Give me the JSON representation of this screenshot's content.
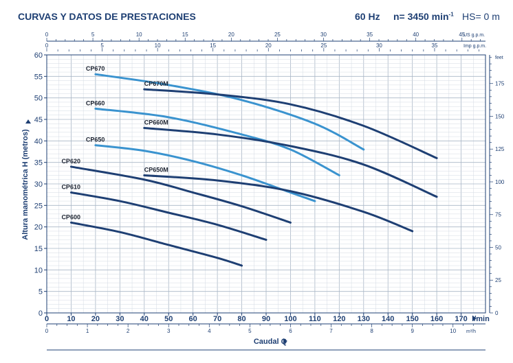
{
  "header": {
    "title": "CURVAS Y DATOS DE PRESTACIONES",
    "frequency": "60 Hz",
    "speed": "n= 3450 min",
    "speed_exp": "-1",
    "suction_head": "HS= 0 m"
  },
  "chart_data": {
    "type": "line",
    "xlabel": "Caudal Q",
    "ylabel": "Altura manométrica H (metros)",
    "xlim": [
      0,
      180
    ],
    "ylim": [
      0,
      60
    ],
    "x_unit": "l/min",
    "grid": true,
    "axes": {
      "lmin": {
        "ticks": [
          0,
          10,
          20,
          30,
          40,
          50,
          60,
          70,
          80,
          90,
          100,
          110,
          120,
          130,
          140,
          150,
          160,
          170
        ],
        "unit": "l/min"
      },
      "m3h": {
        "ticks": [
          0,
          1,
          2,
          3,
          4,
          5,
          6,
          7,
          8,
          9,
          10
        ],
        "unit": "m³/h"
      },
      "usgpm": {
        "ticks": [
          0,
          5,
          10,
          15,
          20,
          25,
          30,
          35,
          40,
          45
        ],
        "unit": "US g.p.m."
      },
      "impgpm": {
        "ticks": [
          0,
          5,
          10,
          15,
          20,
          25,
          30,
          35
        ],
        "unit": "Imp g.p.m."
      },
      "meters": {
        "ticks": [
          0,
          5,
          10,
          15,
          20,
          25,
          30,
          35,
          40,
          45,
          50,
          55,
          60
        ]
      },
      "feet": {
        "ticks": [
          0,
          25,
          50,
          75,
          100,
          125,
          150,
          175
        ],
        "unit": "feet"
      }
    },
    "series": [
      {
        "name": "CP600",
        "color": "#1e3f73",
        "x": [
          10,
          30,
          50,
          70,
          80
        ],
        "y": [
          21,
          18.8,
          15.8,
          12.8,
          11
        ]
      },
      {
        "name": "CP610",
        "color": "#1e3f73",
        "x": [
          10,
          30,
          50,
          70,
          90
        ],
        "y": [
          28,
          26,
          23.3,
          20.5,
          17
        ]
      },
      {
        "name": "CP620",
        "color": "#1e3f73",
        "x": [
          10,
          40,
          60,
          80,
          100
        ],
        "y": [
          34,
          31,
          28,
          24.8,
          21
        ]
      },
      {
        "name": "CP650",
        "color": "#3a93cf",
        "x": [
          20,
          40,
          60,
          80,
          100,
          110
        ],
        "y": [
          39,
          37.7,
          35.3,
          32,
          28,
          26
        ]
      },
      {
        "name": "CP650M",
        "color": "#1e3f73",
        "x": [
          40,
          70,
          100,
          130,
          150
        ],
        "y": [
          32,
          30.8,
          28.3,
          23.5,
          19
        ]
      },
      {
        "name": "CP660",
        "color": "#3a93cf",
        "x": [
          20,
          50,
          80,
          100,
          120
        ],
        "y": [
          47.5,
          45.5,
          41.5,
          38,
          32
        ]
      },
      {
        "name": "CP660M",
        "color": "#1e3f73",
        "x": [
          40,
          70,
          100,
          130,
          160
        ],
        "y": [
          43,
          41.5,
          38.8,
          34.5,
          27
        ]
      },
      {
        "name": "CP670",
        "color": "#3a93cf",
        "x": [
          20,
          50,
          80,
          110,
          130
        ],
        "y": [
          55.5,
          53,
          49.5,
          44,
          38
        ]
      },
      {
        "name": "CP670M",
        "color": "#1e3f73",
        "x": [
          40,
          70,
          100,
          130,
          160
        ],
        "y": [
          52,
          50.8,
          48.5,
          43.5,
          36
        ]
      }
    ]
  }
}
